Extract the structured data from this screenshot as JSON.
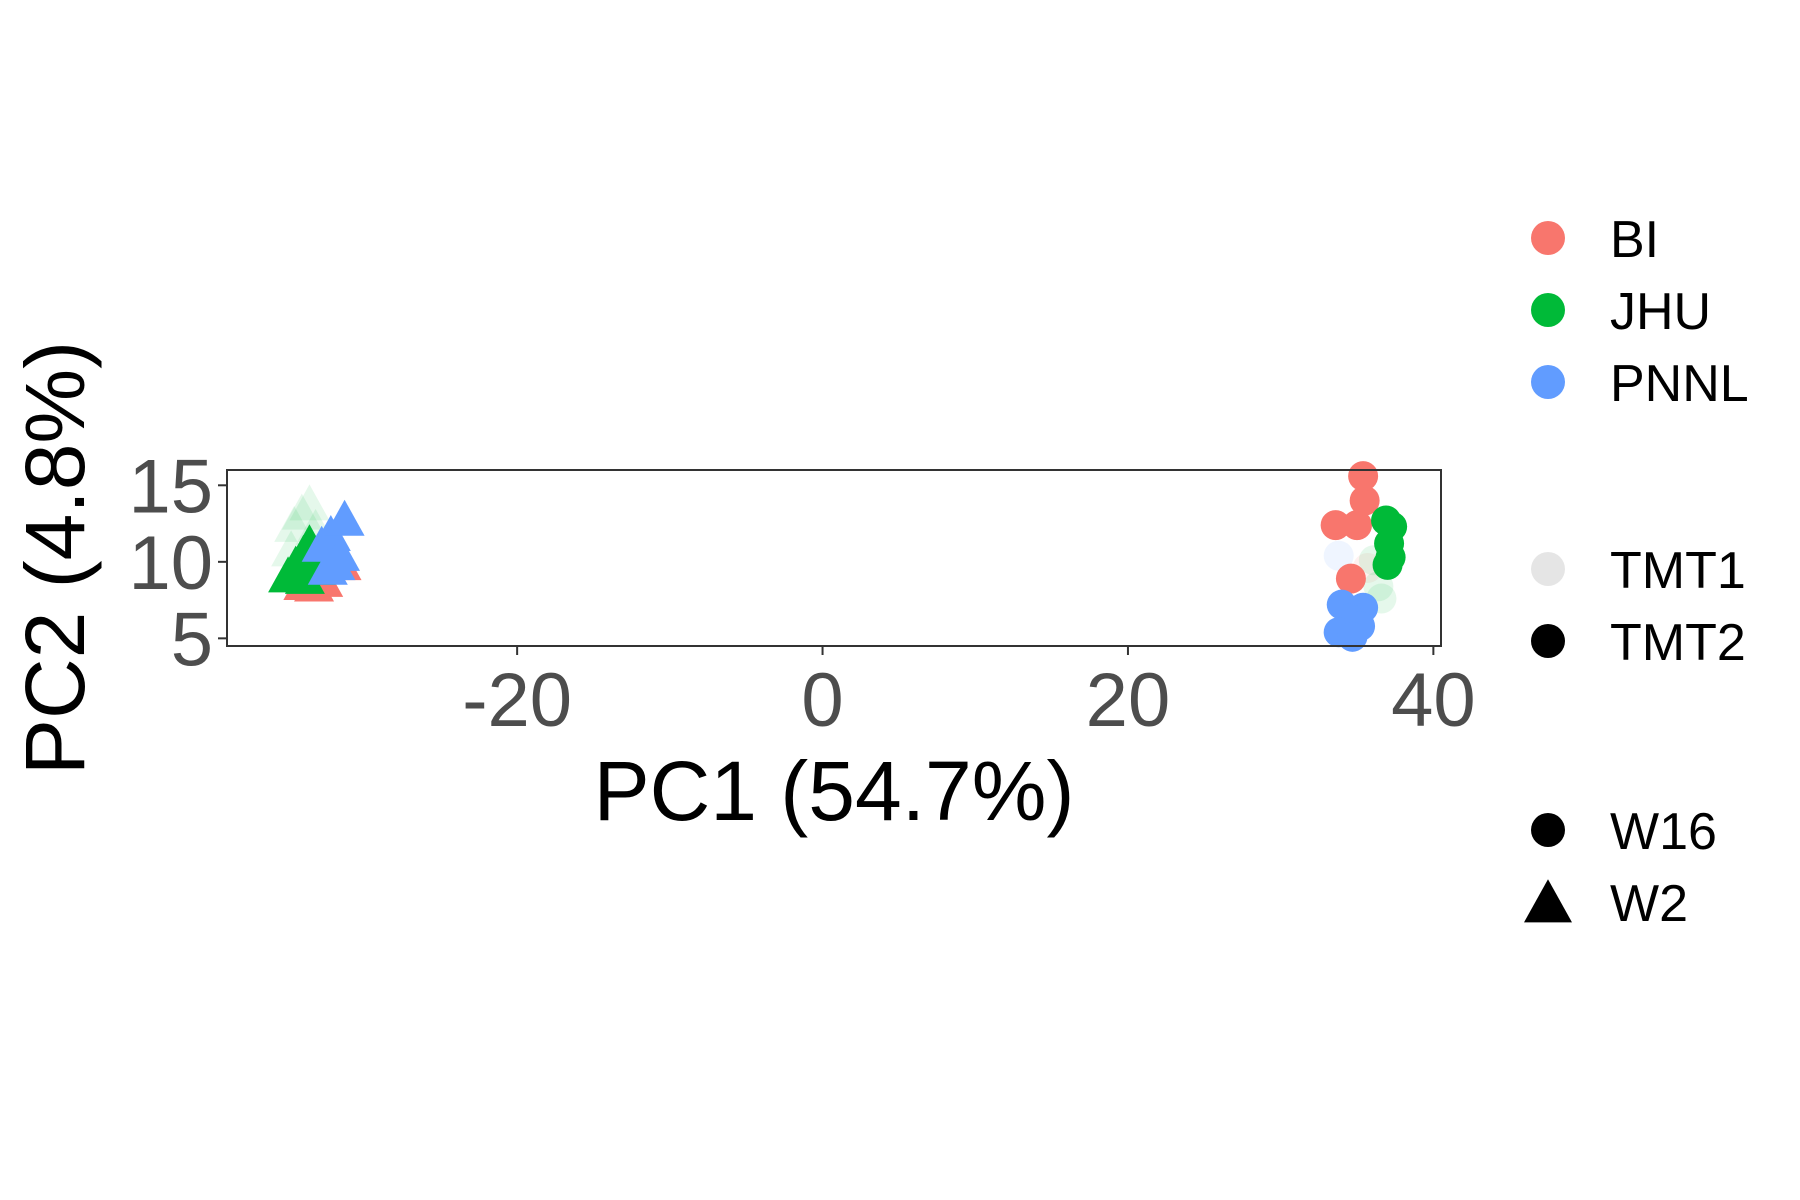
{
  "chart_data": {
    "type": "scatter",
    "xlabel": "PC1 (54.7%)",
    "ylabel": "PC2 (4.8%)",
    "xlim": [
      -39,
      40.5
    ],
    "ylim": [
      4.5,
      16
    ],
    "x_ticks": [
      -20,
      0,
      20,
      40
    ],
    "y_ticks": [
      5,
      10,
      15
    ],
    "grid": false,
    "legend_position": "right",
    "colors": {
      "BI": "#F8766D",
      "JHU": "#00BA38",
      "PNNL": "#619CFF"
    },
    "legends": {
      "site": [
        "BI",
        "JHU",
        "PNNL"
      ],
      "batch": [
        "TMT1",
        "TMT2"
      ],
      "week": [
        "W16",
        "W2"
      ]
    },
    "points": [
      {
        "x": -34.0,
        "y": 8.4,
        "site": "BI",
        "batch": "TMT2",
        "week": "W2"
      },
      {
        "x": -33.3,
        "y": 8.3,
        "site": "BI",
        "batch": "TMT2",
        "week": "W2"
      },
      {
        "x": -32.7,
        "y": 8.6,
        "site": "BI",
        "batch": "TMT2",
        "week": "W2"
      },
      {
        "x": -31.5,
        "y": 9.7,
        "site": "BI",
        "batch": "TMT2",
        "week": "W2"
      },
      {
        "x": -34.6,
        "y": 12.2,
        "site": "JHU",
        "batch": "TMT1",
        "week": "W2"
      },
      {
        "x": -34.1,
        "y": 13.0,
        "site": "JHU",
        "batch": "TMT1",
        "week": "W2"
      },
      {
        "x": -33.6,
        "y": 13.6,
        "site": "JHU",
        "batch": "TMT1",
        "week": "W2"
      },
      {
        "x": -34.8,
        "y": 10.6,
        "site": "JHU",
        "batch": "TMT1",
        "week": "W2"
      },
      {
        "x": -33.2,
        "y": 12.0,
        "site": "JHU",
        "batch": "TMT1",
        "week": "W2"
      },
      {
        "x": -35.0,
        "y": 8.9,
        "site": "JHU",
        "batch": "TMT2",
        "week": "W2"
      },
      {
        "x": -34.5,
        "y": 9.6,
        "site": "JHU",
        "batch": "TMT2",
        "week": "W2"
      },
      {
        "x": -34.0,
        "y": 10.3,
        "site": "JHU",
        "batch": "TMT2",
        "week": "W2"
      },
      {
        "x": -33.6,
        "y": 11.0,
        "site": "JHU",
        "batch": "TMT2",
        "week": "W2"
      },
      {
        "x": -33.9,
        "y": 8.8,
        "site": "JHU",
        "batch": "TMT2",
        "week": "W2"
      },
      {
        "x": -33.2,
        "y": 9.4,
        "site": "JHU",
        "batch": "TMT2",
        "week": "W2"
      },
      {
        "x": -32.8,
        "y": 10.9,
        "site": "PNNL",
        "batch": "TMT2",
        "week": "W2"
      },
      {
        "x": -32.2,
        "y": 11.6,
        "site": "PNNL",
        "batch": "TMT2",
        "week": "W2"
      },
      {
        "x": -31.6,
        "y": 10.3,
        "site": "PNNL",
        "batch": "TMT2",
        "week": "W2"
      },
      {
        "x": -32.4,
        "y": 9.4,
        "site": "PNNL",
        "batch": "TMT2",
        "week": "W2"
      },
      {
        "x": -31.3,
        "y": 12.6,
        "site": "PNNL",
        "batch": "TMT2",
        "week": "W2"
      },
      {
        "x": -31.9,
        "y": 9.7,
        "site": "PNNL",
        "batch": "TMT2",
        "week": "W2"
      },
      {
        "x": 33.8,
        "y": 10.4,
        "site": "PNNL",
        "batch": "TMT1",
        "week": "W16"
      },
      {
        "x": 35.7,
        "y": 9.6,
        "site": "BI",
        "batch": "TMT1",
        "week": "W16"
      },
      {
        "x": 36.4,
        "y": 8.4,
        "site": "JHU",
        "batch": "TMT1",
        "week": "W16"
      },
      {
        "x": 36.6,
        "y": 7.6,
        "site": "JHU",
        "batch": "TMT1",
        "week": "W16"
      },
      {
        "x": 36.1,
        "y": 10.1,
        "site": "JHU",
        "batch": "TMT1",
        "week": "W16"
      },
      {
        "x": 33.6,
        "y": 12.4,
        "site": "BI",
        "batch": "TMT2",
        "week": "W16"
      },
      {
        "x": 35.0,
        "y": 12.4,
        "site": "BI",
        "batch": "TMT2",
        "week": "W16"
      },
      {
        "x": 35.5,
        "y": 14.0,
        "site": "BI",
        "batch": "TMT2",
        "week": "W16"
      },
      {
        "x": 35.4,
        "y": 15.6,
        "site": "BI",
        "batch": "TMT2",
        "week": "W16"
      },
      {
        "x": 34.6,
        "y": 8.9,
        "site": "BI",
        "batch": "TMT2",
        "week": "W16"
      },
      {
        "x": 37.3,
        "y": 12.3,
        "site": "JHU",
        "batch": "TMT2",
        "week": "W16"
      },
      {
        "x": 37.1,
        "y": 11.2,
        "site": "JHU",
        "batch": "TMT2",
        "week": "W16"
      },
      {
        "x": 37.2,
        "y": 10.3,
        "site": "JHU",
        "batch": "TMT2",
        "week": "W16"
      },
      {
        "x": 37.0,
        "y": 9.8,
        "site": "JHU",
        "batch": "TMT2",
        "week": "W16"
      },
      {
        "x": 36.9,
        "y": 12.7,
        "site": "JHU",
        "batch": "TMT2",
        "week": "W16"
      },
      {
        "x": 34.0,
        "y": 7.2,
        "site": "PNNL",
        "batch": "TMT2",
        "week": "W16"
      },
      {
        "x": 35.4,
        "y": 7.0,
        "site": "PNNL",
        "batch": "TMT2",
        "week": "W16"
      },
      {
        "x": 34.5,
        "y": 6.3,
        "site": "PNNL",
        "batch": "TMT2",
        "week": "W16"
      },
      {
        "x": 33.8,
        "y": 5.4,
        "site": "PNNL",
        "batch": "TMT2",
        "week": "W16"
      },
      {
        "x": 35.2,
        "y": 5.8,
        "site": "PNNL",
        "batch": "TMT2",
        "week": "W16"
      },
      {
        "x": 34.7,
        "y": 5.1,
        "site": "PNNL",
        "batch": "TMT2",
        "week": "W16"
      }
    ]
  }
}
